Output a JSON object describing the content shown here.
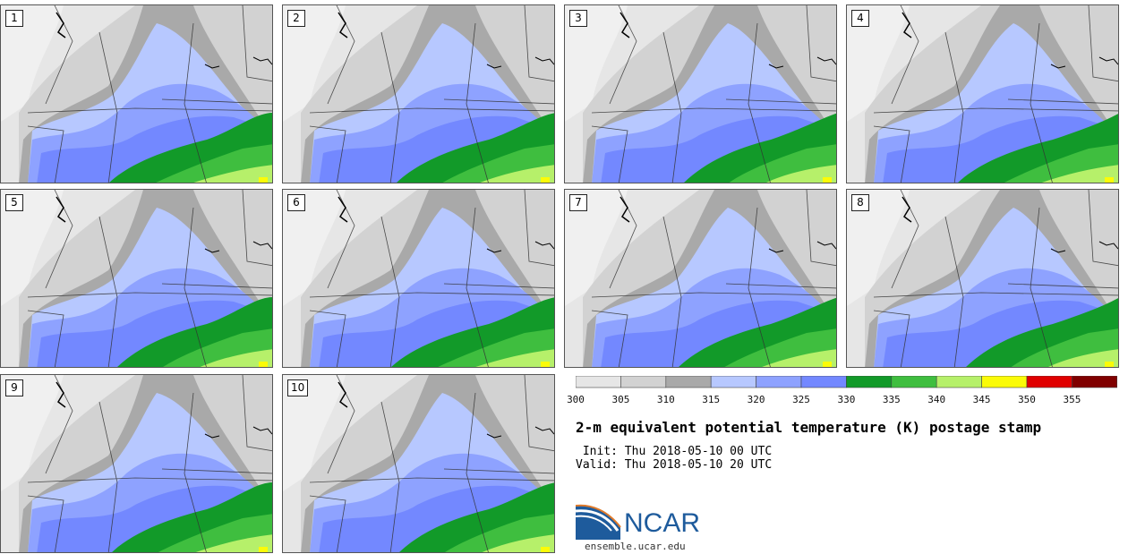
{
  "panels": [
    {
      "label": "1"
    },
    {
      "label": "2"
    },
    {
      "label": "3"
    },
    {
      "label": "4"
    },
    {
      "label": "5"
    },
    {
      "label": "6"
    },
    {
      "label": "7"
    },
    {
      "label": "8"
    },
    {
      "label": "9"
    },
    {
      "label": "10"
    }
  ],
  "colorbar": {
    "ticks": [
      "300",
      "305",
      "310",
      "315",
      "320",
      "325",
      "330",
      "335",
      "340",
      "345",
      "350",
      "355"
    ],
    "colors": [
      "#e6e6e6",
      "#d2d2d2",
      "#a9a9a9",
      "#b7c8ff",
      "#8ea2ff",
      "#7388ff",
      "#129a29",
      "#3fbe3f",
      "#b6f06a",
      "#fbfb08",
      "#e00000",
      "#800000"
    ]
  },
  "title": "2-m equivalent potential temperature (K) postage stamp",
  "init": " Init: Thu 2018-05-10 00 UTC",
  "valid": "Valid: Thu 2018-05-10 20 UTC",
  "logo": {
    "text": "NCAR",
    "site": "ensemble.ucar.edu",
    "color": "#1e5b9c"
  }
}
